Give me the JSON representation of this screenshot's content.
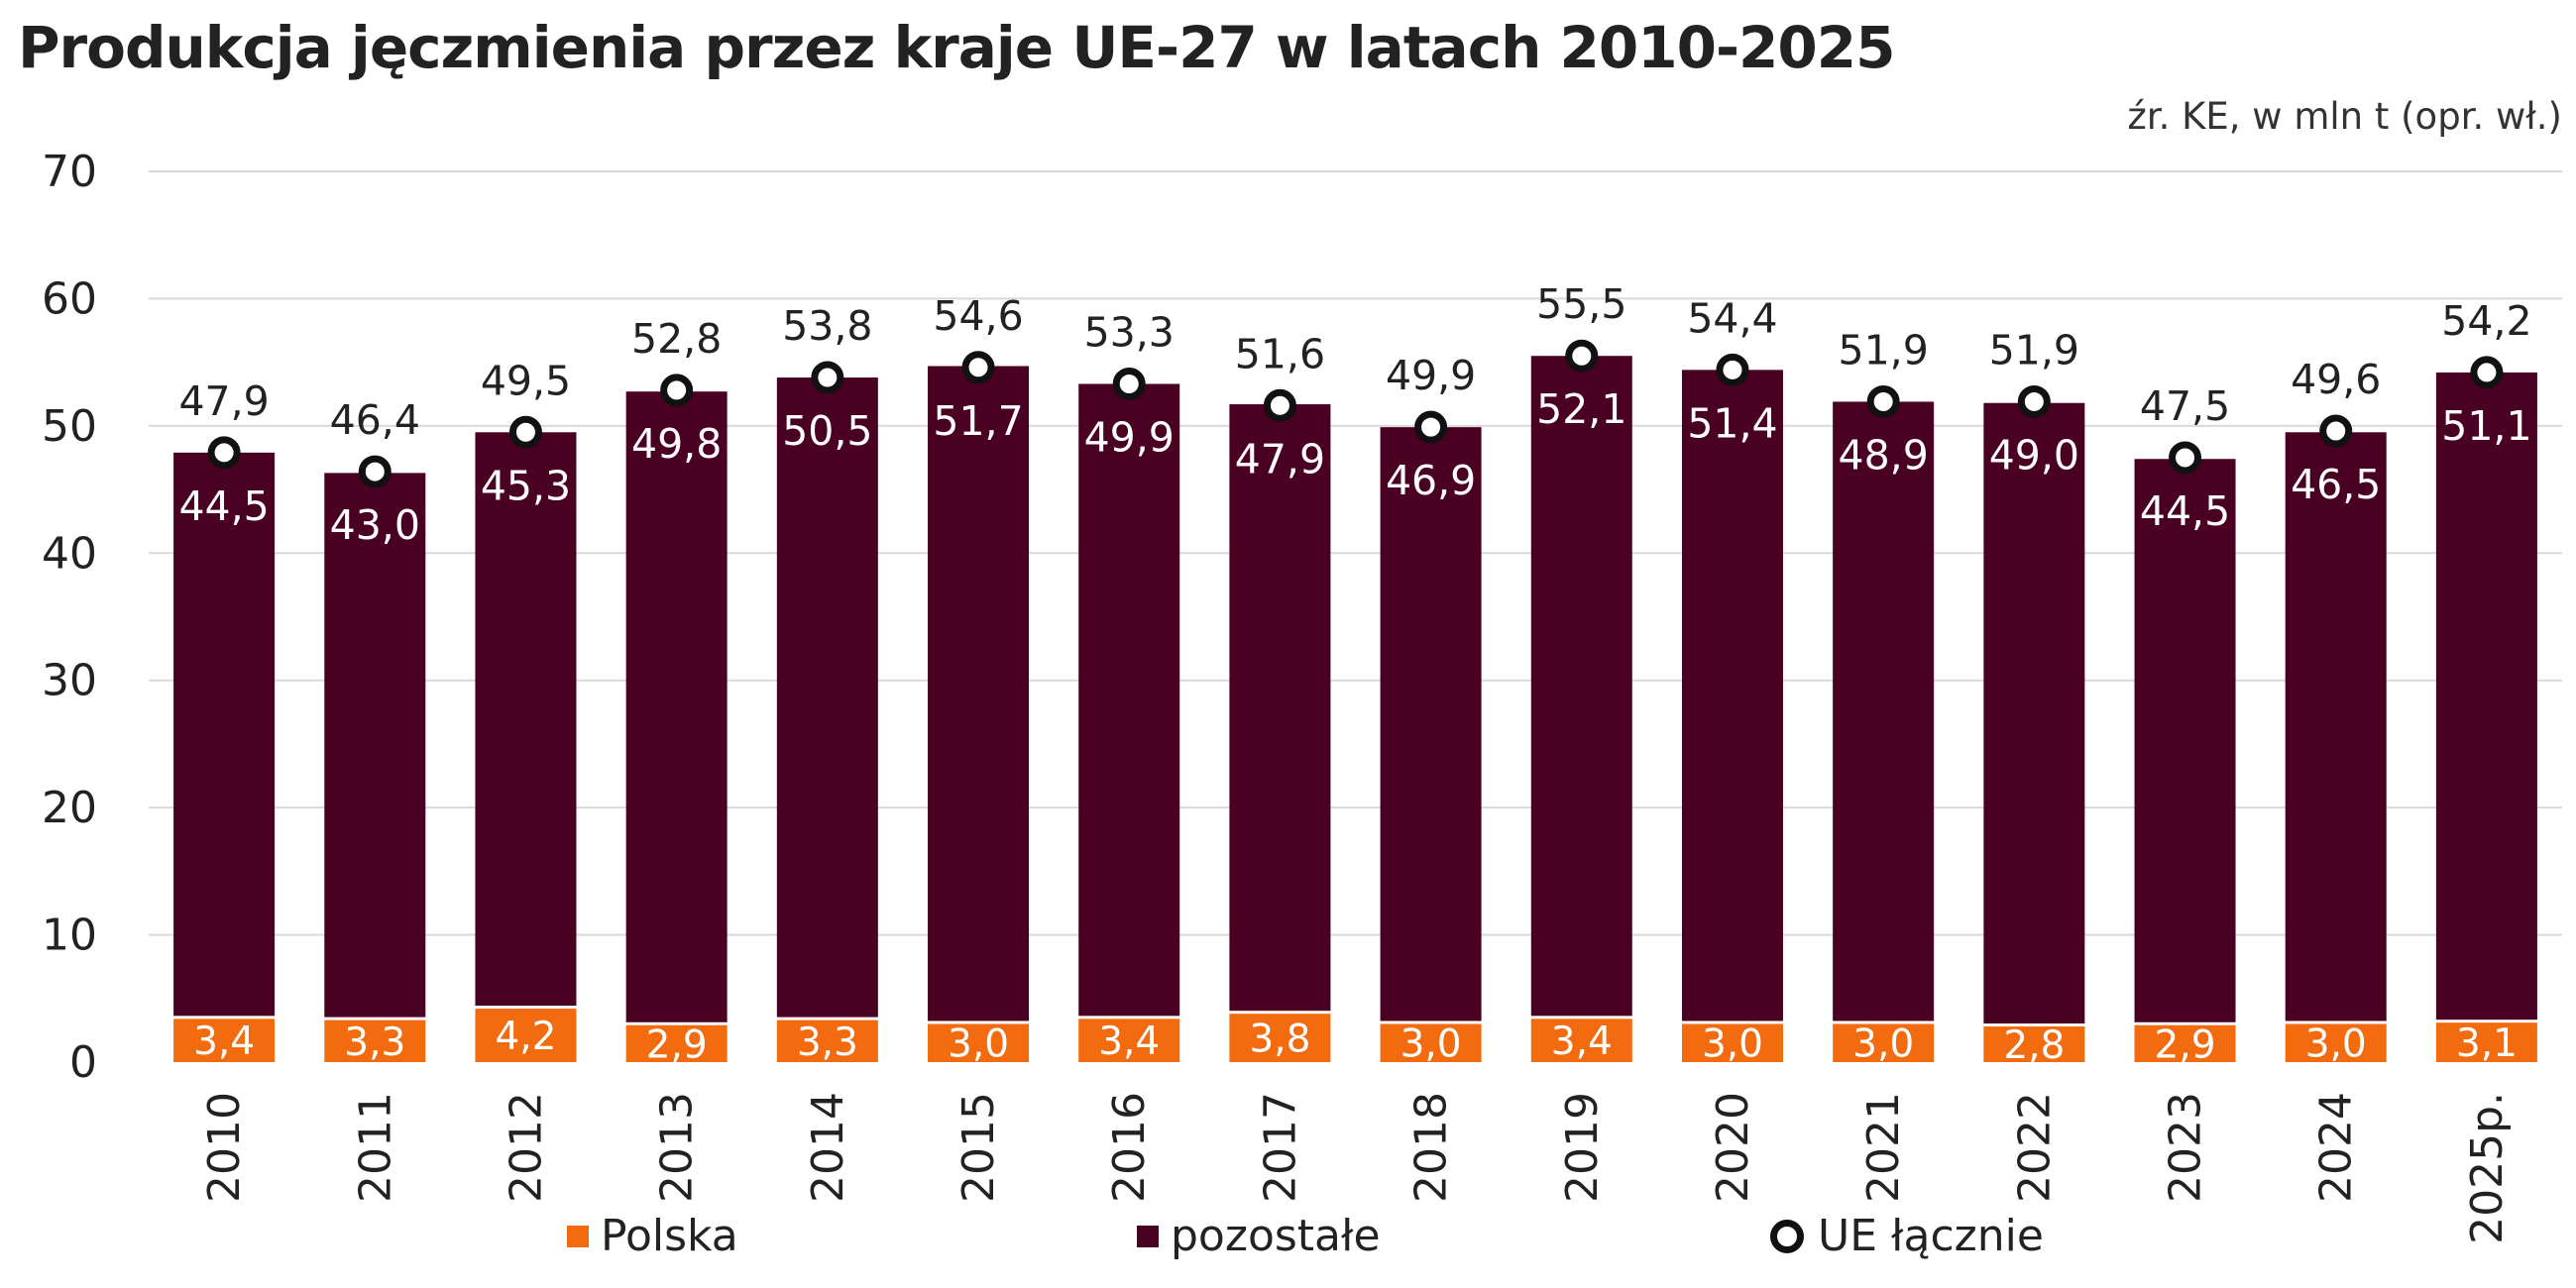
{
  "title": "Produkcja jęczmienia przez kraje UE-27 w latach 2010-2025",
  "source_note": "źr. KE, w mln t (opr. wł.)",
  "colors": {
    "polska": "#f26b0f",
    "pozostale": "#4a0022",
    "grid": "#d9d9d9",
    "marker_stroke": "#111111"
  },
  "legend": {
    "polska": "Polska",
    "pozostale": "pozostałe",
    "total": "UE łącznie"
  },
  "chart_data": {
    "type": "bar",
    "stacked": true,
    "categories": [
      "2010",
      "2011",
      "2012",
      "2013",
      "2014",
      "2015",
      "2016",
      "2017",
      "2018",
      "2019",
      "2020",
      "2021",
      "2022",
      "2023",
      "2024",
      "2025p."
    ],
    "series": [
      {
        "name": "Polska",
        "values": [
          3.4,
          3.3,
          4.2,
          2.9,
          3.3,
          3.0,
          3.4,
          3.8,
          3.0,
          3.4,
          3.0,
          3.0,
          2.8,
          2.9,
          3.0,
          3.1
        ],
        "labels": [
          "3,4",
          "3,3",
          "4,2",
          "2,9",
          "3,3",
          "3,0",
          "3,4",
          "3,8",
          "3,0",
          "3,4",
          "3,0",
          "3,0",
          "2,8",
          "2,9",
          "3,0",
          "3,1"
        ]
      },
      {
        "name": "pozostałe",
        "values": [
          44.5,
          43.0,
          45.3,
          49.8,
          50.5,
          51.7,
          49.9,
          47.9,
          46.9,
          52.1,
          51.4,
          48.9,
          49.0,
          44.5,
          46.5,
          51.1
        ],
        "labels": [
          "44,5",
          "43,0",
          "45,3",
          "49,8",
          "50,5",
          "51,7",
          "49,9",
          "47,9",
          "46,9",
          "52,1",
          "51,4",
          "48,9",
          "49,0",
          "44,5",
          "46,5",
          "51,1"
        ]
      },
      {
        "name": "UE łącznie",
        "type": "scatter",
        "values": [
          47.9,
          46.4,
          49.5,
          52.8,
          53.8,
          54.6,
          53.3,
          51.6,
          49.9,
          55.5,
          54.4,
          51.9,
          51.9,
          47.5,
          49.6,
          54.2
        ],
        "labels": [
          "47,9",
          "46,4",
          "49,5",
          "52,8",
          "53,8",
          "54,6",
          "53,3",
          "51,6",
          "49,9",
          "55,5",
          "54,4",
          "51,9",
          "51,9",
          "47,5",
          "49,6",
          "54,2"
        ]
      }
    ],
    "ylim": [
      0,
      70
    ],
    "yticks": [
      "0",
      "10",
      "20",
      "30",
      "40",
      "50",
      "60",
      "70"
    ],
    "grid": true,
    "legend_position": "bottom"
  }
}
